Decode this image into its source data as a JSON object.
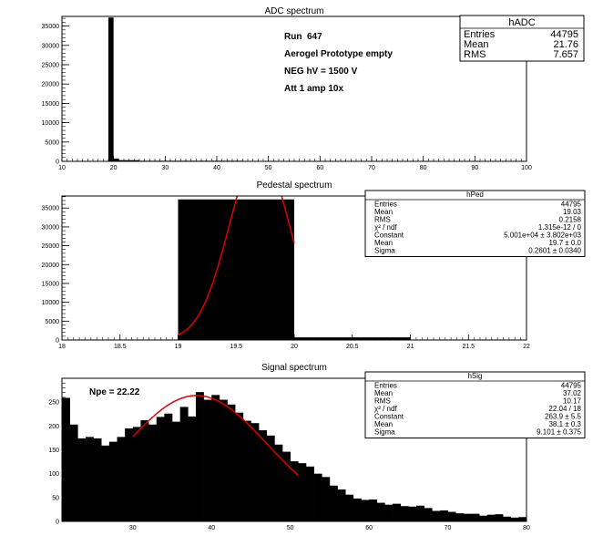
{
  "chart_data": [
    {
      "type": "bar",
      "title": "ADC spectrum",
      "xlim": [
        10,
        100
      ],
      "ylim": [
        0,
        37500
      ],
      "x_ticks": [
        "10",
        "20",
        "30",
        "40",
        "50",
        "60",
        "70",
        "80",
        "90",
        "100"
      ],
      "y_ticks": [
        "0",
        "5000",
        "10000",
        "15000",
        "20000",
        "25000",
        "30000",
        "35000"
      ],
      "bins": [
        {
          "x0": 19,
          "x1": 20,
          "y": 37200
        },
        {
          "x0": 20,
          "x1": 21,
          "y": 700
        },
        {
          "x0": 21,
          "x1": 25,
          "y": 300
        },
        {
          "x0": 25,
          "x1": 45,
          "y": 150
        },
        {
          "x0": 45,
          "x1": 62,
          "y": 70
        }
      ],
      "annotations": [
        "Run  647",
        "Aerogel Prototype empty",
        "NEG hV = 1500 V",
        "Att 1 amp 10x"
      ],
      "stats": {
        "title": "hADC",
        "rows": [
          {
            "label": "Entries",
            "value": "44795"
          },
          {
            "label": "Mean",
            "value": "21.76"
          },
          {
            "label": "RMS",
            "value": "7.657"
          }
        ]
      }
    },
    {
      "type": "bar",
      "title": "Pedestal spectrum",
      "xlim": [
        18,
        22
      ],
      "ylim": [
        0,
        38200
      ],
      "x_ticks": [
        "18",
        "18.5",
        "19",
        "19.5",
        "20",
        "20.5",
        "21",
        "21.5",
        "22"
      ],
      "y_ticks": [
        "0",
        "5000",
        "10000",
        "15000",
        "20000",
        "25000",
        "30000",
        "35000"
      ],
      "bins": [
        {
          "x0": 19,
          "x1": 20,
          "y": 37300
        },
        {
          "x0": 20,
          "x1": 21,
          "y": 700
        }
      ],
      "fit": {
        "type": "gaussian",
        "constant": 50010,
        "mean": 19.7,
        "sigma": 0.2601,
        "x_range": [
          19,
          20
        ]
      },
      "stats": {
        "title": "hPed",
        "rows": [
          {
            "label": "Entries",
            "value": "44795"
          },
          {
            "label": "Mean",
            "value": "19.03"
          },
          {
            "label": "RMS",
            "value": "0.2158"
          },
          {
            "label": "χ² / ndf",
            "value": "1.315e-12 / 0"
          },
          {
            "label": "Constant",
            "value": "5.001e+04 ± 3.802e+03"
          },
          {
            "label": "Mean",
            "value": "19.7 ± 0.0"
          },
          {
            "label": "Sigma",
            "value": "0.2601 ± 0.0340"
          }
        ]
      }
    },
    {
      "type": "bar",
      "title": "Signal spectrum",
      "xlim": [
        21,
        80
      ],
      "ylim": [
        0,
        300
      ],
      "x_ticks": [
        "30",
        "40",
        "50",
        "60",
        "70",
        "80"
      ],
      "y_ticks": [
        "0",
        "50",
        "100",
        "150",
        "200",
        "250"
      ],
      "bin_start": 21,
      "bin_width": 1,
      "values": [
        259,
        203,
        174,
        177,
        174,
        159,
        167,
        177,
        195,
        198,
        212,
        203,
        219,
        226,
        209,
        240,
        220,
        271,
        255,
        265,
        255,
        245,
        228,
        211,
        206,
        191,
        180,
        161,
        146,
        126,
        122,
        115,
        100,
        93,
        75,
        67,
        56,
        48,
        45,
        46,
        39,
        35,
        37,
        32,
        31,
        33,
        28,
        22,
        23,
        20,
        17,
        16,
        16,
        12,
        14,
        15,
        10,
        8,
        9
      ],
      "fit": {
        "type": "gaussian",
        "constant": 263.9,
        "mean": 38.1,
        "sigma": 9.101,
        "x_range": [
          30,
          51
        ]
      },
      "annotation": "Npe = 22.22",
      "stats": {
        "title": "hSig",
        "rows": [
          {
            "label": "Entries",
            "value": "44795"
          },
          {
            "label": "Mean",
            "value": "37.02"
          },
          {
            "label": "RMS",
            "value": "10.17"
          },
          {
            "label": "χ² / ndf",
            "value": "22.04 / 18"
          },
          {
            "label": "Constant",
            "value": "263.9 ± 5.5"
          },
          {
            "label": "Mean",
            "value": "38.1 ± 0.3"
          },
          {
            "label": "Sigma",
            "value": "9.101 ± 0.375"
          }
        ]
      }
    }
  ],
  "colors": {
    "fit_line": "#e00000",
    "histogram": "#000000"
  }
}
